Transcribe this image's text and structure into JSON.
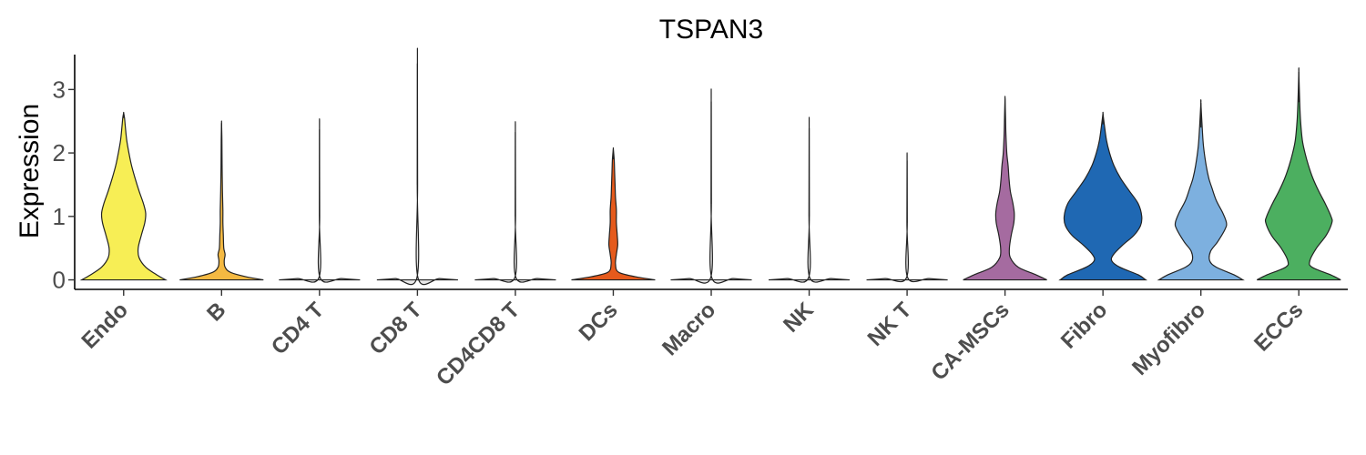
{
  "chart_data": {
    "type": "violin",
    "title": "TSPAN3",
    "xlabel": "",
    "ylabel": "Expression",
    "ylim": [
      -0.15,
      3.55
    ],
    "yticks": [
      0,
      1,
      2,
      3
    ],
    "grid": false,
    "legend": "none",
    "categories": [
      "Endo",
      "B",
      "CD4 T",
      "CD8 T",
      "CD4CD8 T",
      "DCs",
      "Macro",
      "NK",
      "NK T",
      "CA-MSCs",
      "Fibro",
      "Myofibro",
      "ECCs"
    ],
    "colors": [
      "#F7EE55",
      "#F4B942",
      "#E8E8E8",
      "#E8E8E8",
      "#E8E8E8",
      "#E55A1C",
      "#E8E8E8",
      "#E8E8E8",
      "#E8E8E8",
      "#A56BA0",
      "#1F68B3",
      "#7DB0DF",
      "#4CAF60"
    ],
    "max_expression": [
      2.63,
      2.47,
      2.37,
      3.41,
      2.33,
      2.06,
      2.81,
      2.39,
      1.88,
      2.86,
      2.62,
      2.79,
      3.28
    ],
    "density_profiles": [
      [
        [
          0,
          0.95
        ],
        [
          0.08,
          0.75
        ],
        [
          0.2,
          0.5
        ],
        [
          0.35,
          0.35
        ],
        [
          0.5,
          0.33
        ],
        [
          0.7,
          0.4
        ],
        [
          0.9,
          0.48
        ],
        [
          1.05,
          0.5
        ],
        [
          1.2,
          0.45
        ],
        [
          1.4,
          0.35
        ],
        [
          1.6,
          0.26
        ],
        [
          1.8,
          0.18
        ],
        [
          2.0,
          0.12
        ],
        [
          2.2,
          0.07
        ],
        [
          2.4,
          0.04
        ],
        [
          2.55,
          0.02
        ],
        [
          2.63,
          0
        ]
      ],
      [
        [
          0,
          0.95
        ],
        [
          0.05,
          0.55
        ],
        [
          0.12,
          0.2
        ],
        [
          0.2,
          0.08
        ],
        [
          0.3,
          0.06
        ],
        [
          0.4,
          0.08
        ],
        [
          0.5,
          0.05
        ],
        [
          0.7,
          0.04
        ],
        [
          0.9,
          0.03
        ],
        [
          1.1,
          0.03
        ],
        [
          1.4,
          0.02
        ],
        [
          1.8,
          0.012
        ],
        [
          2.2,
          0.008
        ],
        [
          2.47,
          0
        ]
      ],
      [
        [
          0,
          0.92
        ],
        [
          0.02,
          0.5
        ],
        [
          0.04,
          0.01
        ],
        [
          1.0,
          0.004
        ],
        [
          2.37,
          0
        ]
      ],
      [
        [
          0,
          0.92
        ],
        [
          0.02,
          0.5
        ],
        [
          0.04,
          0.01
        ],
        [
          1.5,
          0.004
        ],
        [
          3.41,
          0
        ]
      ],
      [
        [
          0,
          0.92
        ],
        [
          0.02,
          0.5
        ],
        [
          0.04,
          0.01
        ],
        [
          1.0,
          0.004
        ],
        [
          2.33,
          0
        ]
      ],
      [
        [
          0,
          0.95
        ],
        [
          0.05,
          0.5
        ],
        [
          0.12,
          0.12
        ],
        [
          0.25,
          0.05
        ],
        [
          0.4,
          0.07
        ],
        [
          0.55,
          0.1
        ],
        [
          0.7,
          0.09
        ],
        [
          0.9,
          0.07
        ],
        [
          1.1,
          0.07
        ],
        [
          1.3,
          0.05
        ],
        [
          1.5,
          0.04
        ],
        [
          1.7,
          0.03
        ],
        [
          1.9,
          0.02
        ],
        [
          2.06,
          0
        ]
      ],
      [
        [
          0,
          0.92
        ],
        [
          0.02,
          0.5
        ],
        [
          0.04,
          0.01
        ],
        [
          1.2,
          0.004
        ],
        [
          2.81,
          0
        ]
      ],
      [
        [
          0,
          0.92
        ],
        [
          0.02,
          0.5
        ],
        [
          0.04,
          0.01
        ],
        [
          1.0,
          0.004
        ],
        [
          2.39,
          0
        ]
      ],
      [
        [
          0,
          0.92
        ],
        [
          0.02,
          0.5
        ],
        [
          0.04,
          0.01
        ],
        [
          0.9,
          0.004
        ],
        [
          1.88,
          0
        ]
      ],
      [
        [
          0,
          0.95
        ],
        [
          0.08,
          0.7
        ],
        [
          0.2,
          0.3
        ],
        [
          0.35,
          0.12
        ],
        [
          0.5,
          0.1
        ],
        [
          0.7,
          0.14
        ],
        [
          0.9,
          0.2
        ],
        [
          1.05,
          0.21
        ],
        [
          1.2,
          0.18
        ],
        [
          1.4,
          0.12
        ],
        [
          1.6,
          0.09
        ],
        [
          1.8,
          0.07
        ],
        [
          2.0,
          0.04
        ],
        [
          2.3,
          0.02
        ],
        [
          2.6,
          0.01
        ],
        [
          2.86,
          0
        ]
      ],
      [
        [
          0,
          0.97
        ],
        [
          0.08,
          0.8
        ],
        [
          0.2,
          0.38
        ],
        [
          0.3,
          0.2
        ],
        [
          0.4,
          0.24
        ],
        [
          0.55,
          0.45
        ],
        [
          0.7,
          0.7
        ],
        [
          0.85,
          0.85
        ],
        [
          1.0,
          0.88
        ],
        [
          1.2,
          0.8
        ],
        [
          1.4,
          0.6
        ],
        [
          1.6,
          0.4
        ],
        [
          1.8,
          0.25
        ],
        [
          2.0,
          0.15
        ],
        [
          2.2,
          0.08
        ],
        [
          2.45,
          0.03
        ],
        [
          2.62,
          0
        ]
      ],
      [
        [
          0,
          0.95
        ],
        [
          0.08,
          0.75
        ],
        [
          0.2,
          0.35
        ],
        [
          0.3,
          0.2
        ],
        [
          0.45,
          0.22
        ],
        [
          0.6,
          0.38
        ],
        [
          0.8,
          0.55
        ],
        [
          0.9,
          0.58
        ],
        [
          1.05,
          0.5
        ],
        [
          1.25,
          0.35
        ],
        [
          1.45,
          0.25
        ],
        [
          1.6,
          0.18
        ],
        [
          1.8,
          0.12
        ],
        [
          2.1,
          0.06
        ],
        [
          2.4,
          0.03
        ],
        [
          2.79,
          0
        ]
      ],
      [
        [
          0,
          0.95
        ],
        [
          0.08,
          0.72
        ],
        [
          0.2,
          0.3
        ],
        [
          0.3,
          0.25
        ],
        [
          0.5,
          0.4
        ],
        [
          0.7,
          0.62
        ],
        [
          0.9,
          0.75
        ],
        [
          1.0,
          0.73
        ],
        [
          1.2,
          0.6
        ],
        [
          1.4,
          0.45
        ],
        [
          1.6,
          0.32
        ],
        [
          1.8,
          0.22
        ],
        [
          2.0,
          0.14
        ],
        [
          2.2,
          0.08
        ],
        [
          2.5,
          0.04
        ],
        [
          2.8,
          0.02
        ],
        [
          3.28,
          0
        ]
      ]
    ]
  }
}
